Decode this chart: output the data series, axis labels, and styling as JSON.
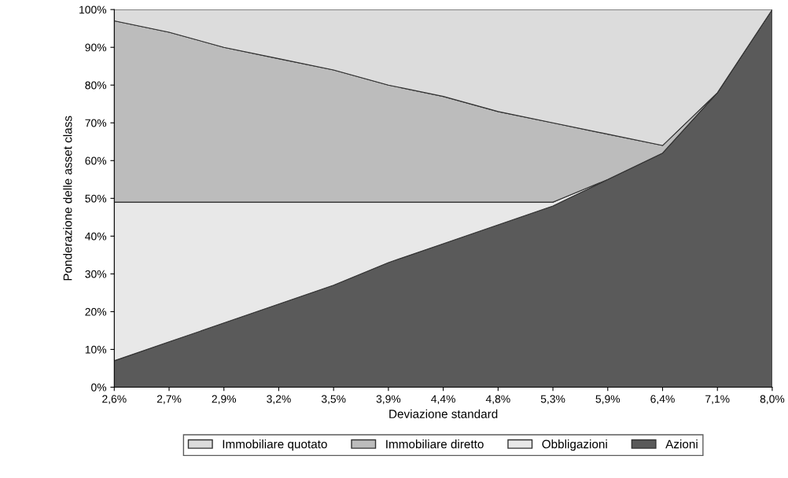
{
  "chart_data": {
    "type": "area",
    "stacked": true,
    "xlabel": "Deviazione standard",
    "ylabel": "Ponderazione delle asset class",
    "categories": [
      "2,6%",
      "2,7%",
      "2,9%",
      "3,2%",
      "3,5%",
      "3,9%",
      "4,4%",
      "4,8%",
      "5,3%",
      "5,9%",
      "6,4%",
      "7,1%",
      "8,0%"
    ],
    "ylim": [
      0,
      100
    ],
    "yticks": [
      {
        "value": 0,
        "label": "0%"
      },
      {
        "value": 10,
        "label": "10%"
      },
      {
        "value": 20,
        "label": "20%"
      },
      {
        "value": 30,
        "label": "30%"
      },
      {
        "value": 40,
        "label": "40%"
      },
      {
        "value": 50,
        "label": "50%"
      },
      {
        "value": 60,
        "label": "60%"
      },
      {
        "value": 70,
        "label": "70%"
      },
      {
        "value": 80,
        "label": "80%"
      },
      {
        "value": 90,
        "label": "90%"
      },
      {
        "value": 100,
        "label": "100%"
      }
    ],
    "grid": false,
    "legend": "bottom",
    "series": [
      {
        "name": "Azioni",
        "color": "#5a5a5a",
        "values": [
          7,
          12,
          17,
          22,
          27,
          33,
          38,
          43,
          48,
          55,
          62,
          78,
          100
        ]
      },
      {
        "name": "Obbligazioni",
        "color": "#e8e8e8",
        "values": [
          42,
          37,
          32,
          27,
          22,
          16,
          11,
          6,
          1,
          0,
          0,
          0,
          0
        ]
      },
      {
        "name": "Immobiliare diretto",
        "color": "#bcbcbc",
        "values": [
          48,
          45,
          41,
          38,
          35,
          31,
          28,
          24,
          21,
          12,
          2,
          0,
          0
        ]
      },
      {
        "name": "Immobiliare quotato",
        "color": "#dcdcdc",
        "values": [
          3,
          6,
          10,
          13,
          16,
          20,
          23,
          27,
          30,
          33,
          36,
          22,
          0
        ]
      }
    ]
  }
}
